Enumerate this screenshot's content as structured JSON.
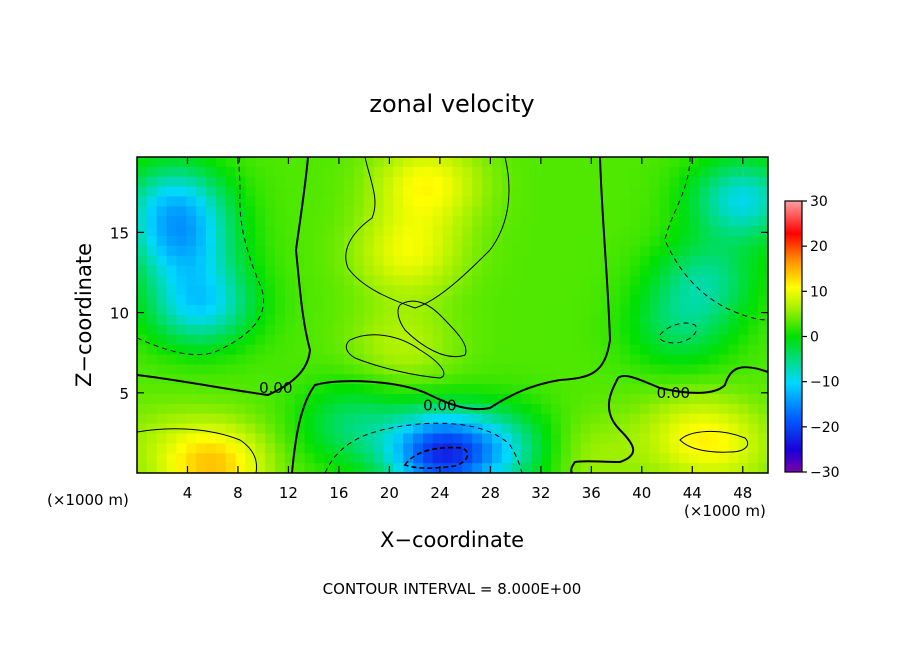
{
  "chart_data": {
    "type": "heatmap",
    "title": "zonal velocity",
    "xlabel": "X−coordinate",
    "ylabel": "Z−coordinate",
    "x_unit_left": "(×1000 m)",
    "x_unit_right": "(×1000 m)",
    "x_ticks": [
      4,
      8,
      12,
      16,
      20,
      24,
      28,
      32,
      36,
      40,
      44,
      48
    ],
    "y_ticks": [
      5,
      10,
      15
    ],
    "xlim": [
      0,
      50
    ],
    "ylim": [
      0,
      19.7
    ],
    "colorbar": {
      "ticks": [
        30,
        20,
        10,
        0,
        -10,
        -20,
        -30
      ],
      "range": [
        -30,
        30
      ]
    },
    "contour_labels": [
      {
        "text": "0.00",
        "x": 11.0,
        "z": 5.3
      },
      {
        "text": "0.00",
        "x": 24.0,
        "z": 4.2
      },
      {
        "text": "0.00",
        "x": 42.5,
        "z": 5.0
      }
    ],
    "footer": "CONTOUR INTERVAL = 8.000E+00",
    "features": [
      {
        "x": 3,
        "z": 17,
        "value": -8
      },
      {
        "x": 5,
        "z": 10.5,
        "value": -10
      },
      {
        "x": 3.5,
        "z": 14.3,
        "value": -9
      },
      {
        "x": 6,
        "z": 0.5,
        "value": 14
      },
      {
        "x": 1,
        "z": 2,
        "value": 5
      },
      {
        "x": 23,
        "z": 18,
        "value": 11
      },
      {
        "x": 21.5,
        "z": 13.7,
        "value": 10
      },
      {
        "x": 21,
        "z": 8,
        "value": 7
      },
      {
        "x": 24,
        "z": 1.2,
        "value": -20
      },
      {
        "x": 29,
        "z": 1.5,
        "value": -6
      },
      {
        "x": 17,
        "z": 3,
        "value": -4
      },
      {
        "x": 44,
        "z": 2.3,
        "value": 9
      },
      {
        "x": 47,
        "z": 1.5,
        "value": 7
      },
      {
        "x": 48,
        "z": 17,
        "value": -9
      },
      {
        "x": 45,
        "z": 12,
        "value": -5
      },
      {
        "x": 43,
        "z": 9,
        "value": -3
      },
      {
        "x": 36,
        "z": 1,
        "value": 6
      }
    ]
  }
}
